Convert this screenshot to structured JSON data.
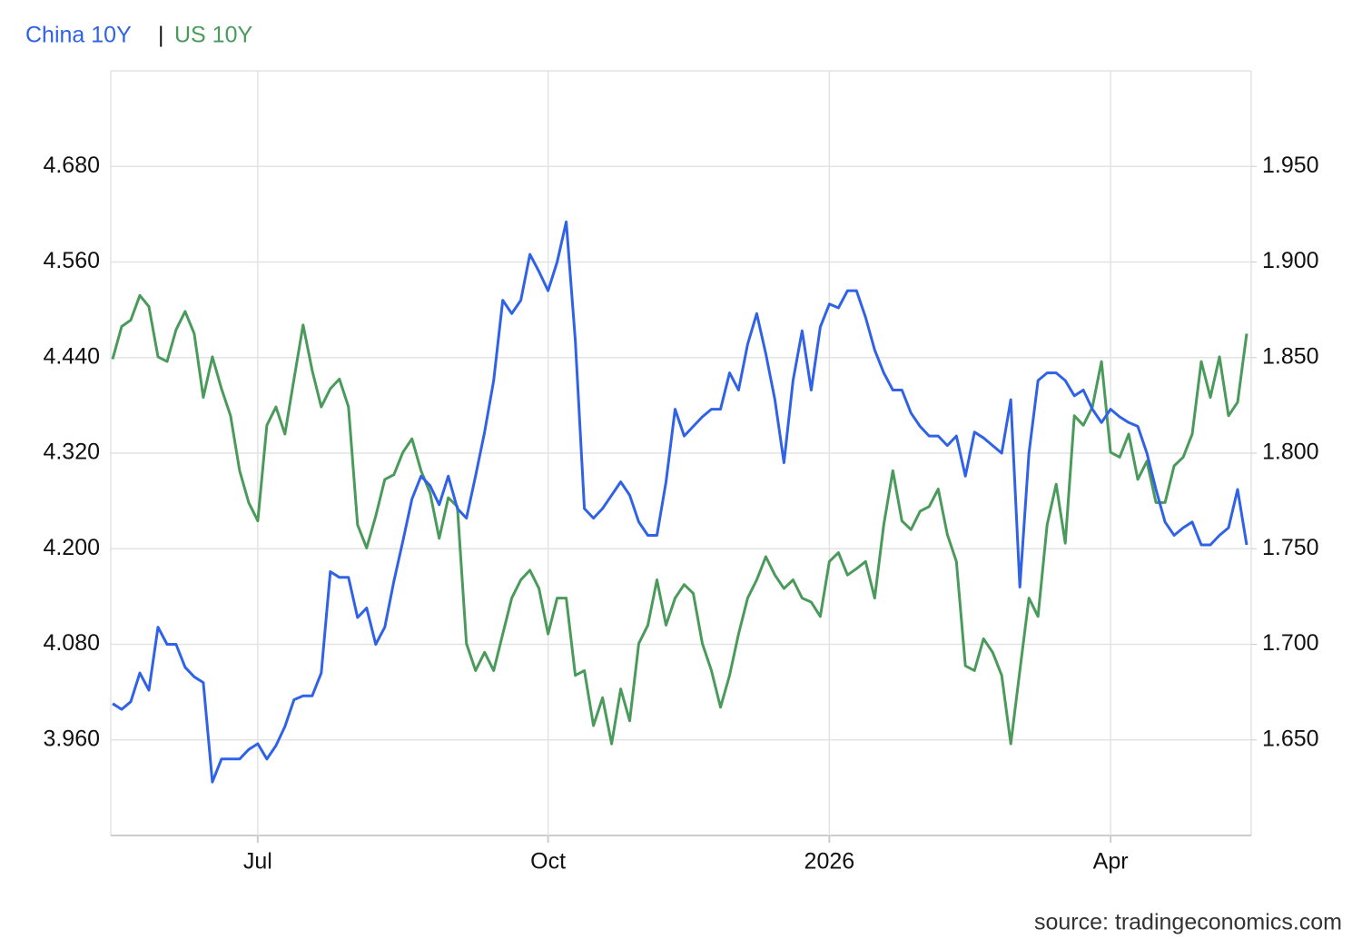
{
  "chart_data": {
    "type": "line",
    "legend_separator": "|",
    "source": "source: tradingeconomics.com",
    "categories": [
      null,
      null,
      null,
      null,
      null,
      null,
      null,
      null,
      null,
      null,
      null,
      null,
      null,
      null,
      null,
      null,
      "Jul",
      null,
      null,
      null,
      null,
      null,
      null,
      null,
      null,
      null,
      null,
      null,
      null,
      null,
      null,
      null,
      null,
      null,
      null,
      null,
      null,
      null,
      null,
      null,
      null,
      null,
      null,
      null,
      null,
      null,
      null,
      null,
      "Oct",
      null,
      null,
      null,
      null,
      null,
      null,
      null,
      null,
      null,
      null,
      null,
      null,
      null,
      null,
      null,
      null,
      null,
      null,
      null,
      null,
      null,
      null,
      null,
      null,
      null,
      null,
      null,
      null,
      null,
      null,
      "2026",
      null,
      null,
      null,
      null,
      null,
      null,
      null,
      null,
      null,
      null,
      null,
      null,
      null,
      null,
      null,
      null,
      null,
      null,
      null,
      null,
      null,
      null,
      null,
      null,
      null,
      null,
      null,
      null,
      null,
      null,
      "Apr",
      null,
      null,
      null,
      null,
      null,
      null,
      null,
      null,
      null,
      null,
      null,
      null,
      null,
      null,
      null
    ],
    "series": [
      {
        "name": "China 10Y",
        "color": "#2f62e6",
        "axis": "y2",
        "values": [
          1.669,
          1.666,
          1.67,
          1.685,
          1.676,
          1.709,
          1.7,
          1.7,
          1.688,
          1.683,
          1.68,
          1.628,
          1.64,
          1.64,
          1.64,
          1.645,
          1.648,
          1.64,
          1.647,
          1.657,
          1.671,
          1.673,
          1.673,
          1.685,
          1.738,
          1.735,
          1.735,
          1.714,
          1.719,
          1.7,
          1.709,
          1.733,
          1.754,
          1.776,
          1.788,
          1.783,
          1.773,
          1.788,
          1.771,
          1.766,
          1.788,
          1.811,
          1.838,
          1.88,
          1.873,
          1.88,
          1.904,
          1.895,
          1.885,
          1.9,
          1.921,
          1.859,
          1.771,
          1.766,
          1.771,
          1.778,
          1.785,
          1.778,
          1.764,
          1.757,
          1.757,
          1.785,
          1.823,
          1.809,
          1.814,
          1.819,
          1.823,
          1.823,
          1.842,
          1.833,
          1.857,
          1.873,
          1.852,
          1.828,
          1.795,
          1.838,
          1.864,
          1.833,
          1.866,
          1.878,
          1.876,
          1.885,
          1.885,
          1.871,
          1.854,
          1.842,
          1.833,
          1.833,
          1.821,
          1.814,
          1.809,
          1.809,
          1.804,
          1.809,
          1.788,
          1.811,
          1.808,
          1.804,
          1.8,
          1.828,
          1.73,
          1.8,
          1.838,
          1.842,
          1.842,
          1.838,
          1.83,
          1.833,
          1.823,
          1.816,
          1.823,
          1.819,
          1.816,
          1.814,
          1.8,
          1.781,
          1.764,
          1.757,
          1.761,
          1.764,
          1.752,
          1.752,
          1.757,
          1.761,
          1.781,
          1.752
        ]
      },
      {
        "name": "US 10Y",
        "color": "#4a9a5c",
        "axis": "y",
        "values": [
          4.438,
          4.479,
          4.487,
          4.518,
          4.504,
          4.441,
          4.435,
          4.475,
          4.498,
          4.47,
          4.39,
          4.441,
          4.401,
          4.367,
          4.298,
          4.258,
          4.235,
          4.355,
          4.378,
          4.344,
          4.413,
          4.481,
          4.424,
          4.378,
          4.401,
          4.413,
          4.378,
          4.23,
          4.201,
          4.241,
          4.287,
          4.293,
          4.321,
          4.338,
          4.298,
          4.27,
          4.213,
          4.264,
          4.253,
          4.081,
          4.047,
          4.07,
          4.047,
          4.093,
          4.138,
          4.161,
          4.173,
          4.15,
          4.093,
          4.138,
          4.138,
          4.041,
          4.047,
          3.978,
          4.013,
          3.955,
          4.024,
          3.984,
          4.081,
          4.104,
          4.161,
          4.104,
          4.138,
          4.155,
          4.144,
          4.081,
          4.047,
          4.001,
          4.041,
          4.093,
          4.138,
          4.161,
          4.19,
          4.167,
          4.15,
          4.161,
          4.138,
          4.133,
          4.115,
          4.184,
          4.195,
          4.167,
          4.175,
          4.184,
          4.138,
          4.23,
          4.298,
          4.235,
          4.224,
          4.247,
          4.253,
          4.275,
          4.218,
          4.184,
          4.053,
          4.047,
          4.087,
          4.07,
          4.041,
          3.955,
          4.047,
          4.138,
          4.115,
          4.23,
          4.281,
          4.207,
          4.367,
          4.355,
          4.378,
          4.435,
          4.321,
          4.315,
          4.344,
          4.287,
          4.31,
          4.258,
          4.258,
          4.304,
          4.315,
          4.344,
          4.435,
          4.39,
          4.441,
          4.367,
          4.384,
          4.47
        ]
      }
    ],
    "ylim": [
      3.84,
      4.8
    ],
    "yticks": [
      {
        "value": 3.96,
        "label": "3.960"
      },
      {
        "value": 4.08,
        "label": "4.080"
      },
      {
        "value": 4.2,
        "label": "4.200"
      },
      {
        "value": 4.32,
        "label": "4.320"
      },
      {
        "value": 4.44,
        "label": "4.440"
      },
      {
        "value": 4.56,
        "label": "4.560"
      },
      {
        "value": 4.68,
        "label": "4.680"
      }
    ],
    "y2lim": [
      1.6,
      2.0
    ],
    "y2ticks": [
      {
        "value": 1.65,
        "label": "1.650"
      },
      {
        "value": 1.7,
        "label": "1.700"
      },
      {
        "value": 1.75,
        "label": "1.750"
      },
      {
        "value": 1.8,
        "label": "1.800"
      },
      {
        "value": 1.85,
        "label": "1.850"
      },
      {
        "value": 1.9,
        "label": "1.900"
      },
      {
        "value": 1.95,
        "label": "1.950"
      }
    ],
    "grid": true
  }
}
